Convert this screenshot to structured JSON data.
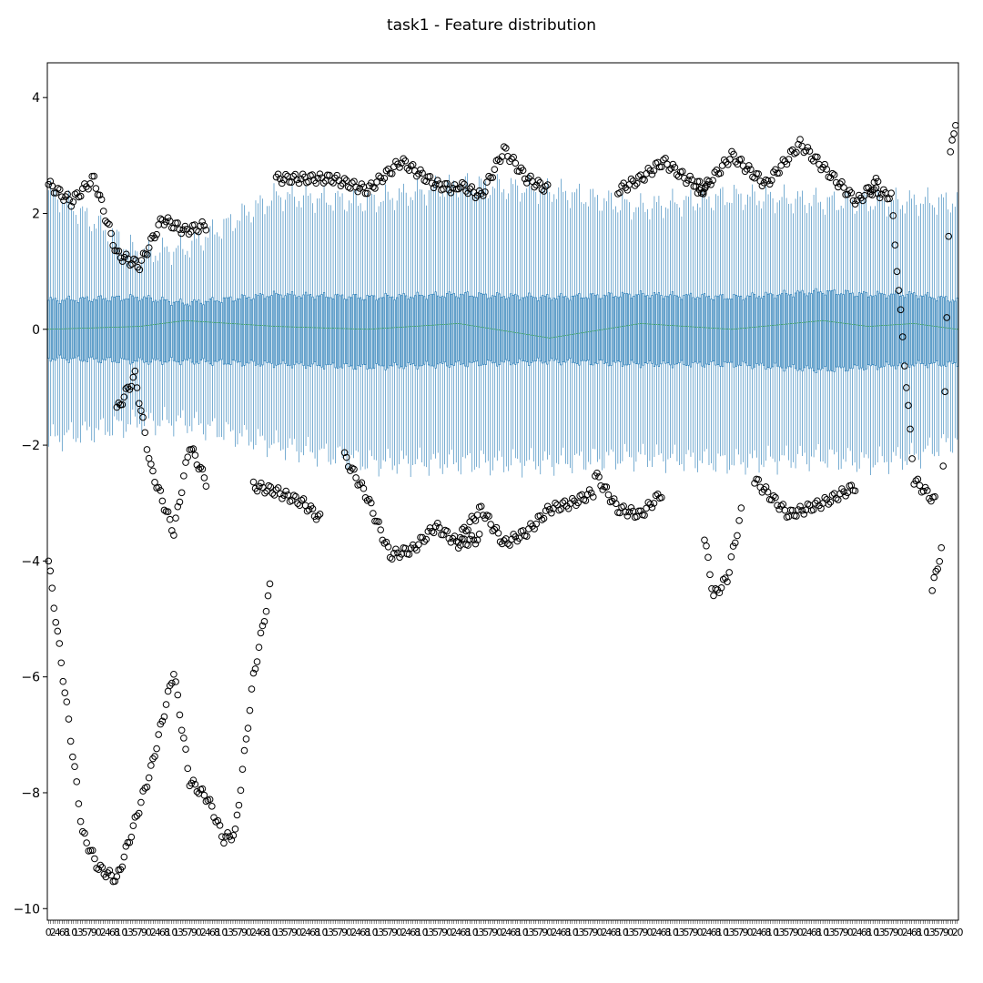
{
  "chart_data": {
    "type": "box",
    "title": "task1 - Feature distribution",
    "xlabel": "",
    "ylabel": "",
    "ylim": [
      -10.2,
      4.6
    ],
    "yticks": [
      4,
      2,
      0,
      -2,
      -4,
      -6,
      -8,
      -10
    ],
    "ytick_labels": [
      "4",
      "2",
      "0",
      "−2",
      "−4",
      "−6",
      "−8",
      "−10"
    ],
    "xtick_labels_visible": [
      "0",
      "1",
      "2",
      "3",
      "4",
      "5",
      "6",
      "7",
      "8",
      "9",
      "10"
    ],
    "x_last_tick_label": "0",
    "n_boxes": 400,
    "grid": false,
    "colors": {
      "box": "#1f77b4",
      "median": "#2ca02c",
      "outlier": "#000000",
      "axis": "#000000"
    },
    "series": [
      {
        "profile_x": [
          0,
          40,
          60,
          100,
          140,
          180,
          220,
          260,
          300,
          340,
          360,
          380,
          399
        ],
        "median": [
          0.0,
          0.05,
          0.15,
          0.05,
          0.0,
          0.1,
          -0.15,
          0.1,
          0.0,
          0.15,
          0.05,
          0.1,
          0.0
        ],
        "q3": [
          0.5,
          0.55,
          0.45,
          0.6,
          0.55,
          0.6,
          0.55,
          0.6,
          0.55,
          0.65,
          0.6,
          0.6,
          0.5
        ],
        "q1": [
          -0.5,
          -0.55,
          -0.55,
          -0.6,
          -0.65,
          -0.6,
          -0.55,
          -0.6,
          -0.6,
          -0.7,
          -0.65,
          -0.6,
          -0.6
        ],
        "whisker_high": [
          2.4,
          1.3,
          1.4,
          2.3,
          2.2,
          2.5,
          2.4,
          2.1,
          2.3,
          2.2,
          2.2,
          2.2,
          2.2
        ],
        "whisker_low": [
          -1.9,
          -1.6,
          -1.6,
          -2.0,
          -2.3,
          -2.3,
          -2.3,
          -2.2,
          -2.3,
          -2.2,
          -2.3,
          -2.2,
          -1.9
        ]
      }
    ],
    "outlier_curves": [
      {
        "x": [
          0,
          8,
          15,
          22,
          30,
          38,
          45
        ],
        "y": [
          -4.0,
          -6.5,
          -8.7,
          -9.3,
          -9.5,
          -8.5,
          -7.6
        ]
      },
      {
        "x": [
          45,
          55,
          62,
          70,
          77,
          82,
          90,
          98
        ],
        "y": [
          -7.6,
          -5.9,
          -7.8,
          -8.1,
          -8.8,
          -8.7,
          -6.0,
          -4.3
        ]
      },
      {
        "x": [
          0,
          10,
          20,
          30,
          40,
          50,
          60,
          70
        ],
        "y": [
          2.5,
          2.2,
          2.6,
          1.3,
          1.1,
          1.9,
          1.7,
          1.8
        ]
      },
      {
        "x": [
          30,
          38,
          45,
          55,
          62,
          70
        ],
        "y": [
          -1.4,
          -0.8,
          -2.4,
          -3.5,
          -2.0,
          -2.7
        ]
      },
      {
        "x": [
          90,
          100,
          112,
          120
        ],
        "y": [
          -2.7,
          -2.8,
          -3.0,
          -3.3
        ]
      },
      {
        "x": [
          100,
          115,
          125,
          140,
          155,
          170,
          180
        ],
        "y": [
          2.6,
          2.6,
          2.6,
          2.4,
          2.9,
          2.5,
          2.4
        ]
      },
      {
        "x": [
          130,
          140,
          150,
          160,
          170,
          180,
          190
        ],
        "y": [
          -2.2,
          -2.9,
          -3.9,
          -3.8,
          -3.4,
          -3.7,
          -3.6
        ]
      },
      {
        "x": [
          180,
          190,
          200,
          210,
          220,
          230,
          240
        ],
        "y": [
          -3.6,
          -3.1,
          -3.7,
          -3.5,
          -3.1,
          -3.0,
          -2.8
        ]
      },
      {
        "x": [
          180,
          190,
          200,
          210,
          220
        ],
        "y": [
          2.5,
          2.3,
          3.1,
          2.6,
          2.4
        ]
      },
      {
        "x": [
          240,
          250,
          260,
          270
        ],
        "y": [
          -2.5,
          -3.1,
          -3.2,
          -2.8
        ]
      },
      {
        "x": [
          250,
          260,
          270,
          280,
          290
        ],
        "y": [
          2.4,
          2.6,
          2.9,
          2.6,
          2.4
        ]
      },
      {
        "x": [
          288,
          292,
          298,
          305
        ],
        "y": [
          -3.6,
          -4.6,
          -4.3,
          -3.0
        ]
      },
      {
        "x": [
          285,
          300,
          315,
          330,
          345,
          355,
          365
        ],
        "y": [
          2.3,
          3.0,
          2.5,
          3.2,
          2.6,
          2.2,
          2.6
        ]
      },
      {
        "x": [
          310,
          325,
          340,
          355
        ],
        "y": [
          -2.6,
          -3.2,
          -3.0,
          -2.7
        ]
      },
      {
        "x": [
          360,
          370,
          380,
          390
        ],
        "y": [
          2.4,
          2.3,
          -2.6,
          -3.0
        ]
      },
      {
        "x": [
          388,
          392,
          396,
          399
        ],
        "y": [
          -4.5,
          -3.8,
          3.0,
          3.8
        ]
      }
    ]
  }
}
